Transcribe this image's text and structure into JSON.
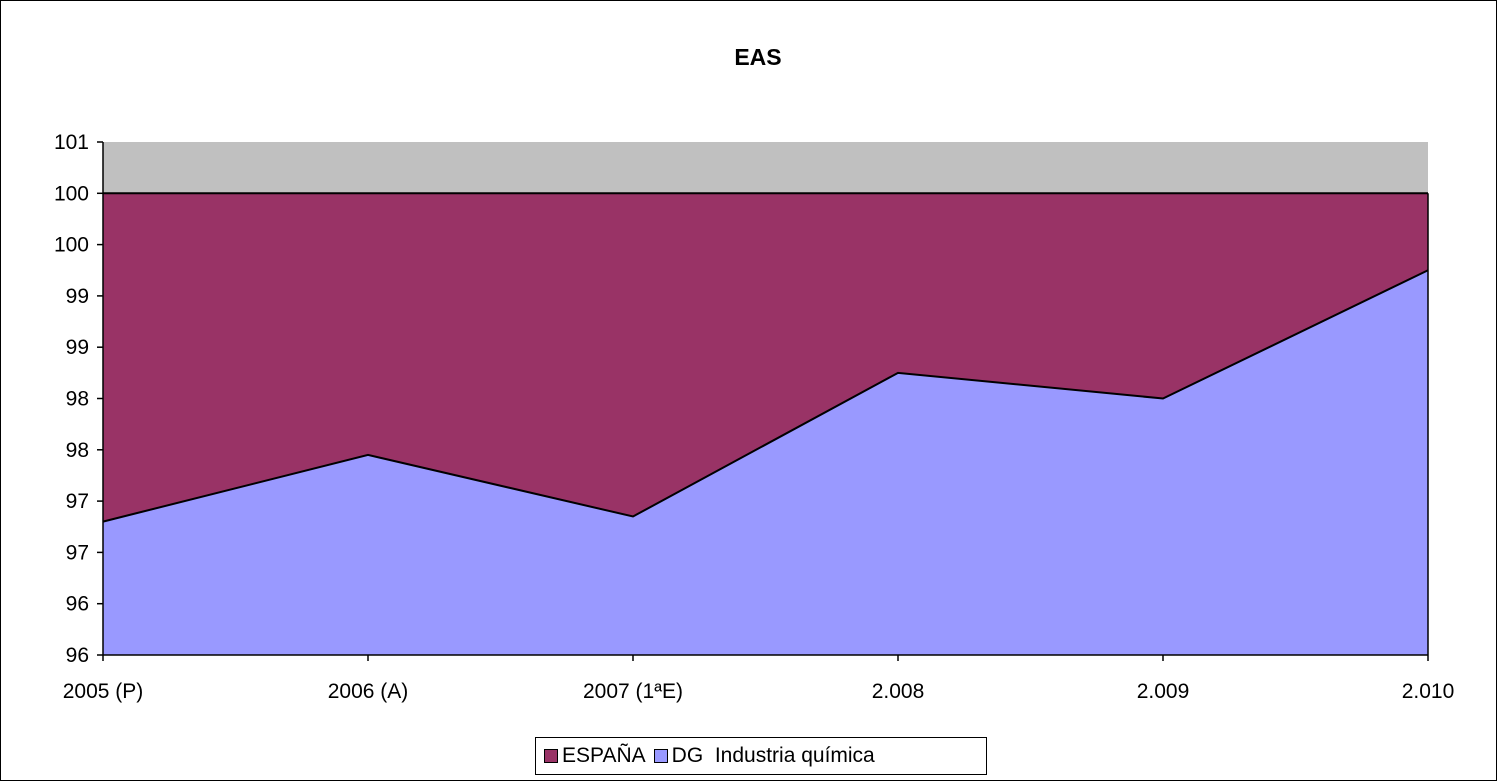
{
  "chart_data": {
    "type": "area",
    "title": "EAS",
    "categories": [
      "2005 (P)",
      "2006 (A)",
      "2007 (1ªE)",
      "2.008",
      "2.009",
      "2.010"
    ],
    "ylim": [
      96,
      101
    ],
    "y_ticks": [
      96,
      96.5,
      97,
      97.5,
      98,
      98.5,
      99,
      99.5,
      100,
      100.5,
      101
    ],
    "y_tick_labels": [
      "96",
      "96",
      "97",
      "97",
      "98",
      "98",
      "99",
      "99",
      "100",
      "100",
      "101"
    ],
    "series": [
      {
        "name": "DG  Industria química",
        "values": [
          97.3,
          97.95,
          97.35,
          98.75,
          98.5,
          99.75
        ],
        "color": "#9999ff"
      },
      {
        "name": "ESPAÑA",
        "values": [
          100.5,
          100.5,
          100.5,
          100.5,
          100.5,
          100.5
        ],
        "color": "#993366"
      }
    ],
    "plot_background": "#c0c0c0",
    "grid": false,
    "legend_position": "bottom"
  }
}
